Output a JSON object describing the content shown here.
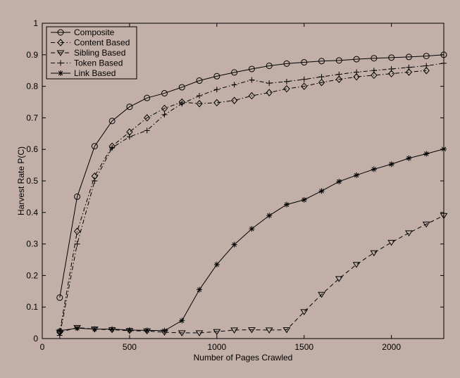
{
  "chart_data": {
    "type": "line",
    "title": "",
    "xlabel": "Number of Pages Crawled",
    "ylabel": "Harvest Rate P(C)",
    "xlim": [
      0,
      2300
    ],
    "ylim": [
      0,
      1
    ],
    "x_ticks": [
      0,
      500,
      1000,
      1500,
      2000
    ],
    "y_ticks": [
      0,
      0.1,
      0.2,
      0.3,
      0.4,
      0.5,
      0.6,
      0.7,
      0.8,
      0.9,
      1
    ],
    "x_tick_labels": [
      "0",
      "500",
      "1000",
      "1500",
      "2000"
    ],
    "y_tick_labels": [
      "0",
      "0.1",
      "0.2",
      "0.3",
      "0.4",
      "0.5",
      "0.6",
      "0.7",
      "0.8",
      "0.9",
      "1"
    ],
    "grid": false,
    "legend_position": "top-left",
    "series": [
      {
        "name": "Composite",
        "marker": "circle",
        "dash": "solid",
        "color": "#000000",
        "x": [
          100,
          200,
          300,
          400,
          500,
          600,
          700,
          800,
          900,
          1000,
          1100,
          1200,
          1300,
          1400,
          1500,
          1600,
          1700,
          1800,
          1900,
          2000,
          2100,
          2200,
          2300
        ],
        "y": [
          0.13,
          0.45,
          0.61,
          0.69,
          0.735,
          0.763,
          0.778,
          0.797,
          0.818,
          0.832,
          0.844,
          0.855,
          0.865,
          0.872,
          0.876,
          0.88,
          0.882,
          0.886,
          0.889,
          0.891,
          0.893,
          0.896,
          0.9
        ]
      },
      {
        "name": "Content Based",
        "marker": "diamond",
        "dash": "dashdot",
        "color": "#000000",
        "x": [
          100,
          200,
          300,
          400,
          500,
          600,
          700,
          800,
          900,
          1000,
          1100,
          1200,
          1300,
          1400,
          1500,
          1600,
          1700,
          1800,
          1900,
          2000,
          2100,
          2200
        ],
        "y": [
          0.02,
          0.34,
          0.515,
          0.61,
          0.655,
          0.7,
          0.73,
          0.75,
          0.745,
          0.748,
          0.755,
          0.77,
          0.78,
          0.792,
          0.8,
          0.812,
          0.822,
          0.83,
          0.835,
          0.84,
          0.845,
          0.85
        ]
      },
      {
        "name": "Sibling Based",
        "marker": "triangle-down",
        "dash": "dashed",
        "color": "#000000",
        "x": [
          100,
          200,
          300,
          400,
          500,
          600,
          700,
          800,
          900,
          1000,
          1100,
          1200,
          1300,
          1400,
          1500,
          1600,
          1700,
          1800,
          1900,
          2000,
          2100,
          2200,
          2300
        ],
        "y": [
          0.02,
          0.035,
          0.03,
          0.028,
          0.025,
          0.024,
          0.02,
          0.018,
          0.018,
          0.022,
          0.027,
          0.028,
          0.027,
          0.028,
          0.085,
          0.14,
          0.19,
          0.235,
          0.272,
          0.305,
          0.335,
          0.363,
          0.39
        ]
      },
      {
        "name": "Token Based",
        "marker": "plus",
        "dash": "dashdot",
        "color": "#000000",
        "x": [
          100,
          200,
          300,
          400,
          500,
          600,
          700,
          800,
          900,
          1000,
          1100,
          1200,
          1300,
          1400,
          1500,
          1600,
          1700,
          1800,
          1900,
          2000,
          2100,
          2200,
          2300
        ],
        "y": [
          0.01,
          0.3,
          0.5,
          0.605,
          0.64,
          0.66,
          0.71,
          0.745,
          0.77,
          0.79,
          0.805,
          0.82,
          0.81,
          0.815,
          0.822,
          0.83,
          0.838,
          0.845,
          0.85,
          0.855,
          0.86,
          0.865,
          0.873
        ]
      },
      {
        "name": "Link Based",
        "marker": "star",
        "dash": "solid",
        "color": "#000000",
        "x": [
          100,
          200,
          300,
          400,
          500,
          600,
          700,
          800,
          900,
          1000,
          1100,
          1200,
          1300,
          1400,
          1500,
          1600,
          1700,
          1800,
          1900,
          2000,
          2100,
          2200,
          2300
        ],
        "y": [
          0.025,
          0.033,
          0.03,
          0.03,
          0.027,
          0.026,
          0.025,
          0.057,
          0.155,
          0.235,
          0.298,
          0.348,
          0.39,
          0.425,
          0.44,
          0.468,
          0.498,
          0.518,
          0.537,
          0.553,
          0.572,
          0.586,
          0.601
        ]
      }
    ]
  }
}
